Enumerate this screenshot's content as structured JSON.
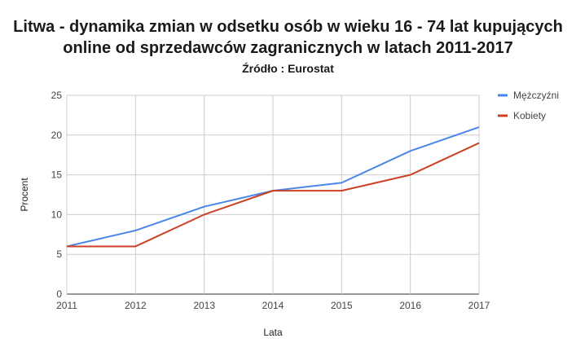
{
  "chart_data": {
    "type": "line",
    "title_lines": [
      "Litwa - dynamika zmian w odsetku osób w wieku 16 - 74 lat kupujących",
      "online od sprzedawców zagranicznych w latach  2011-2017"
    ],
    "subtitle": "Źródło : Eurostat",
    "xlabel": "Lata",
    "ylabel": "Procent",
    "x": [
      "2011",
      "2012",
      "2013",
      "2014",
      "2015",
      "2016",
      "2017"
    ],
    "yticks": [
      "0",
      "5",
      "10",
      "15",
      "20",
      "25"
    ],
    "ylim": [
      0,
      25
    ],
    "grid": true,
    "legend_position": "right",
    "series": [
      {
        "name": "Mężczyźni",
        "color": "#4a86e8",
        "values": [
          6,
          8,
          11,
          13,
          14,
          18,
          21
        ]
      },
      {
        "name": "Kobiety",
        "color": "#cc4125",
        "values": [
          6,
          6,
          10,
          13,
          13,
          15,
          19
        ]
      }
    ]
  }
}
